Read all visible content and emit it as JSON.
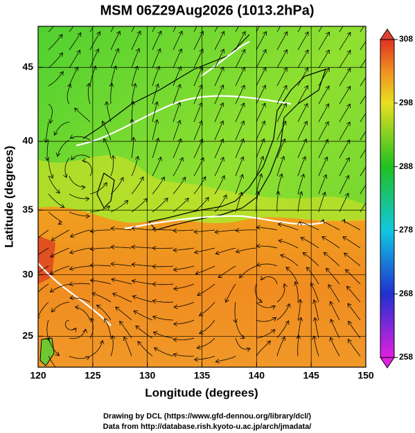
{
  "title": "MSM 06Z29Aug2026 (1013.2hPa)",
  "map": {
    "xlabel": "Longitude (degrees)",
    "ylabel": "Latitude  (degrees)",
    "xlim": [
      120,
      150
    ],
    "ylim": [
      22.4,
      47.6
    ],
    "xticks": [
      120,
      125,
      130,
      135,
      140,
      145,
      150
    ],
    "yticks": [
      25,
      30,
      35,
      40,
      45
    ]
  },
  "colorbar": {
    "lim": [
      258,
      308
    ],
    "ticks": [
      258,
      268,
      278,
      288,
      298,
      308
    ]
  },
  "footer": [
    "Drawing by DCL (https://www.gfd-dennou.org/library/dcl/)",
    "Data from http://database.rish.kyoto-u.ac.jp/arch/jmadata/"
  ]
}
